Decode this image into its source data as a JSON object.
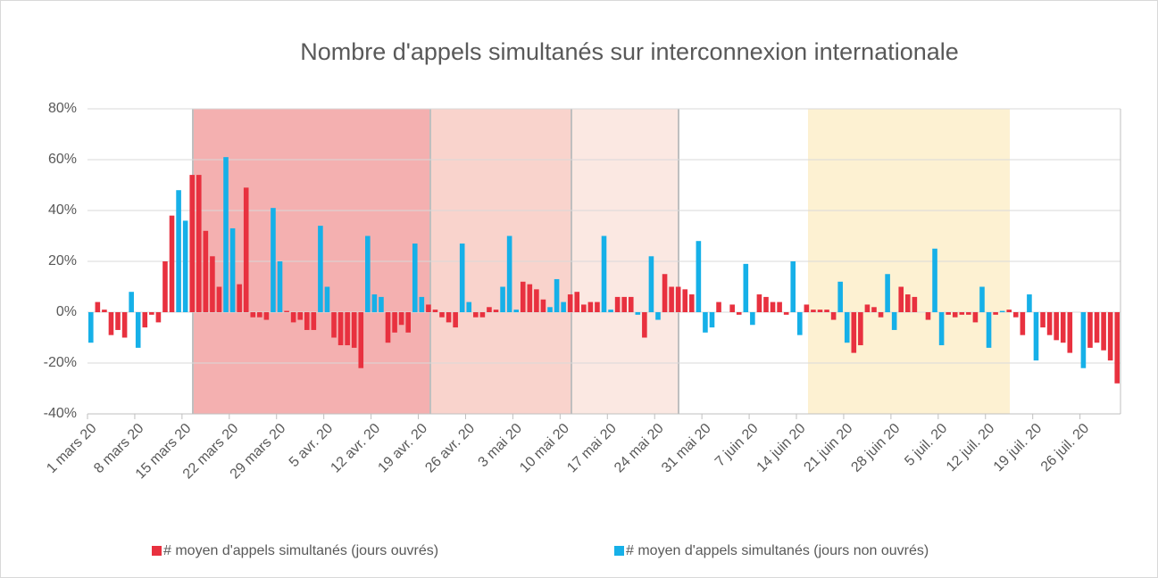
{
  "chart_data": {
    "type": "bar",
    "title": "Nombre d'appels simultanés sur interconnexion internationale",
    "categories": [
      "1 mars 20",
      null,
      null,
      null,
      null,
      null,
      null,
      "8 mars 20",
      null,
      null,
      null,
      null,
      null,
      null,
      "15 mars 20",
      null,
      null,
      null,
      null,
      null,
      null,
      "22 mars 20",
      null,
      null,
      null,
      null,
      null,
      null,
      "29 mars 20",
      null,
      null,
      null,
      null,
      null,
      null,
      "5 avr. 20",
      null,
      null,
      null,
      null,
      null,
      null,
      "12 avr. 20",
      null,
      null,
      null,
      null,
      null,
      null,
      "19 avr. 20",
      null,
      null,
      null,
      null,
      null,
      null,
      "26 avr. 20",
      null,
      null,
      null,
      null,
      null,
      null,
      "3 mai 20",
      null,
      null,
      null,
      null,
      null,
      null,
      "10 mai 20",
      null,
      null,
      null,
      null,
      null,
      null,
      "17 mai 20",
      null,
      null,
      null,
      null,
      null,
      null,
      "24 mai 20",
      null,
      null,
      null,
      null,
      null,
      null,
      "31 mai 20",
      null,
      null,
      null,
      null,
      null,
      null,
      "7 juin 20",
      null,
      null,
      null,
      null,
      null,
      null,
      "14 juin 20",
      null,
      null,
      null,
      null,
      null,
      null,
      "21 juin 20",
      null,
      null,
      null,
      null,
      null,
      null,
      "28 juin 20",
      null,
      null,
      null,
      null,
      null,
      null,
      "5 juil. 20",
      null,
      null,
      null,
      null,
      null,
      null,
      "12 juil. 20",
      null,
      null,
      null,
      null,
      null,
      null,
      "19 juil. 20",
      null,
      null,
      null,
      null,
      null,
      null,
      "26 juil. 20",
      null,
      null,
      null,
      null,
      null
    ],
    "series": [
      {
        "name": "# moyen d'appels simultanés (jours ouvrés)",
        "color": "#e8313f",
        "values": [
          null,
          4,
          1,
          -9,
          -7,
          -10,
          null,
          null,
          -6,
          -1,
          -4,
          20,
          38,
          null,
          null,
          54,
          54,
          32,
          22,
          10,
          null,
          null,
          11,
          49,
          -2,
          -2,
          -3,
          null,
          null,
          0.5,
          -4,
          -3,
          -7,
          -7,
          null,
          null,
          -10,
          -13,
          -13,
          -14,
          -22,
          null,
          null,
          null,
          -12,
          -8,
          -5,
          -8,
          null,
          null,
          3,
          1,
          -2,
          -4,
          -6,
          null,
          null,
          -2,
          -2,
          2,
          1,
          null,
          null,
          null,
          12,
          11,
          9,
          5,
          null,
          null,
          null,
          7,
          8,
          3,
          4,
          4,
          null,
          null,
          6,
          6,
          6,
          null,
          -10,
          null,
          null,
          15,
          10,
          10,
          9,
          7,
          null,
          null,
          null,
          4,
          0,
          3,
          -1,
          null,
          null,
          7,
          6,
          4,
          4,
          -1,
          null,
          null,
          3,
          1,
          1,
          1,
          -3,
          null,
          null,
          -16,
          -13,
          3,
          2,
          -2,
          null,
          null,
          10,
          7,
          6,
          0,
          -3,
          null,
          null,
          -1,
          -2,
          -1,
          -1,
          -4,
          null,
          null,
          -1,
          null,
          1,
          -2,
          -9,
          null,
          null,
          -6,
          -9,
          -11,
          -12,
          -16,
          null,
          null,
          -14,
          -12,
          -15,
          -19,
          -28
        ]
      },
      {
        "name": "# moyen d'appels simultanés (jours non ouvrés)",
        "color": "#16b0e8",
        "values": [
          -12,
          null,
          null,
          null,
          null,
          null,
          8,
          -14,
          null,
          null,
          null,
          null,
          null,
          48,
          36,
          null,
          null,
          null,
          null,
          null,
          61,
          33,
          null,
          null,
          null,
          null,
          null,
          41,
          20,
          null,
          null,
          null,
          null,
          null,
          34,
          10,
          null,
          null,
          null,
          null,
          null,
          30,
          7,
          6,
          null,
          null,
          null,
          null,
          27,
          6,
          null,
          null,
          null,
          null,
          null,
          27,
          4,
          null,
          null,
          null,
          null,
          10,
          30,
          1,
          null,
          null,
          null,
          null,
          2,
          13,
          4,
          null,
          null,
          null,
          null,
          null,
          30,
          1,
          null,
          null,
          null,
          -1,
          null,
          22,
          -3,
          null,
          null,
          null,
          null,
          null,
          28,
          -8,
          -6,
          null,
          null,
          null,
          null,
          19,
          -5,
          null,
          null,
          null,
          null,
          null,
          20,
          -9,
          null,
          null,
          null,
          null,
          null,
          12,
          -12,
          null,
          null,
          null,
          null,
          null,
          15,
          -7,
          null,
          null,
          null,
          null,
          null,
          25,
          -13,
          null,
          null,
          null,
          null,
          null,
          10,
          -14,
          null,
          0.5,
          null,
          null,
          null,
          7,
          -19,
          null,
          null,
          null,
          null,
          null,
          0,
          -22,
          null,
          null,
          null,
          null,
          null
        ]
      }
    ],
    "ylim": [
      -40,
      80
    ],
    "yticks": [
      {
        "value": -40,
        "label": "-40%"
      },
      {
        "value": -20,
        "label": "-20%"
      },
      {
        "value": 0,
        "label": "0%"
      },
      {
        "value": 20,
        "label": "20%"
      },
      {
        "value": 40,
        "label": "40%"
      },
      {
        "value": 60,
        "label": "60%"
      },
      {
        "value": 80,
        "label": "80%"
      }
    ],
    "grid": true,
    "legend": "bottom"
  }
}
